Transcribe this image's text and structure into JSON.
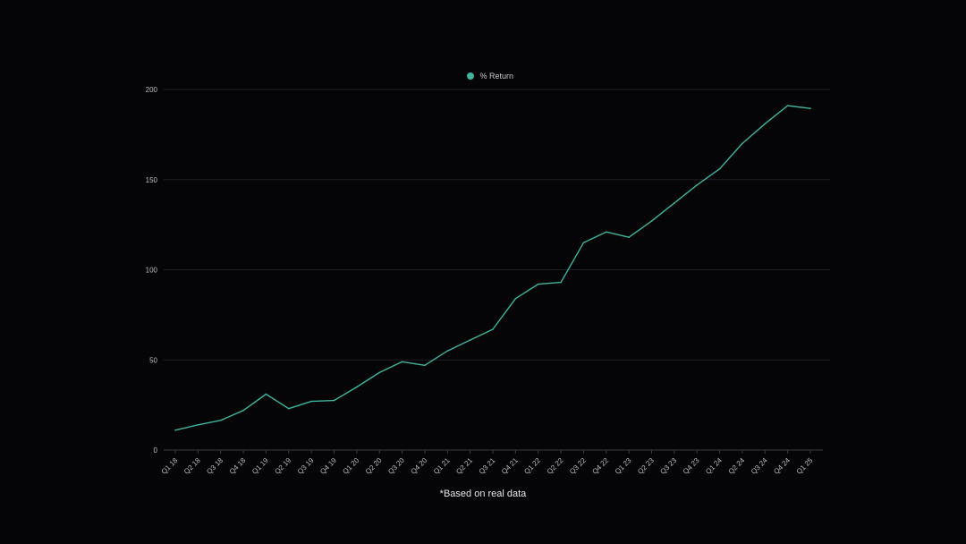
{
  "chart_data": {
    "type": "line",
    "categories": [
      "Q1 18",
      "Q2 18",
      "Q3 18",
      "Q4 18",
      "Q1 19",
      "Q2 19",
      "Q3 19",
      "Q4 19",
      "Q1 20",
      "Q2 20",
      "Q3 20",
      "Q4 20",
      "Q1 21",
      "Q2 21",
      "Q3 21",
      "Q4 21",
      "Q1 22",
      "Q2 22",
      "Q3 22",
      "Q4 22",
      "Q1 23",
      "Q2 23",
      "Q3 23",
      "Q4 23",
      "Q1 24",
      "Q2 24",
      "Q3 24",
      "Q4 24",
      "Q1 25"
    ],
    "series": [
      {
        "name": "% Return",
        "color": "#3fb39c",
        "values": [
          11,
          14,
          16.5,
          22,
          31,
          23,
          27,
          27.5,
          35,
          43,
          49,
          47,
          55,
          61,
          67,
          84,
          92,
          93,
          115,
          121,
          118,
          127,
          137,
          147,
          156,
          170,
          181,
          191,
          189.5
        ]
      }
    ],
    "ylim": [
      0,
      200
    ],
    "yticks": [
      0,
      50,
      100,
      150,
      200
    ],
    "grid": true,
    "legend_position": "top-center",
    "xlabel": "",
    "ylabel": "",
    "footnote": "*Based on real data",
    "gridline_color": "#1f1f24",
    "axis_color": "#3a3a40"
  }
}
